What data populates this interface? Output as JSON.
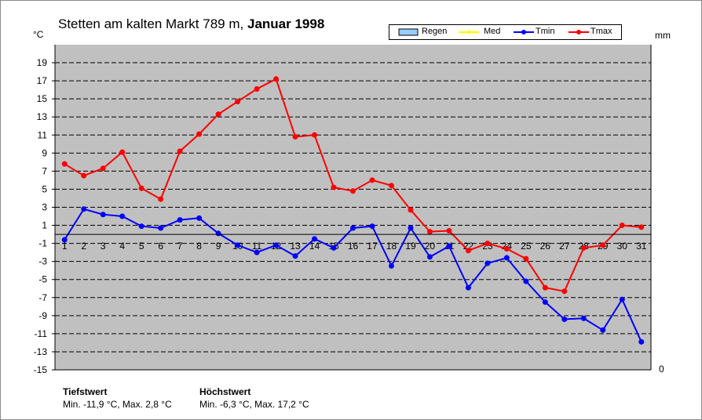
{
  "title": {
    "station": "Stetten am kalten Markt",
    "altitude": "789 m,",
    "period": "Januar 1998"
  },
  "axis": {
    "left_unit": "°C",
    "right_unit": "mm",
    "right_tick": "0"
  },
  "legend": [
    {
      "name": "Regen",
      "color": "#99ccff",
      "kind": "bar"
    },
    {
      "name": "Med",
      "color": "#ffff00",
      "kind": "line"
    },
    {
      "name": "Tmin",
      "color": "#0000ff",
      "kind": "line"
    },
    {
      "name": "Tmax",
      "color": "#ff0000",
      "kind": "line"
    }
  ],
  "stats": {
    "min_label": "Tiefstwert",
    "min_text": "Min. -11,9 °C, Max. 2,8 °C",
    "max_label": "Höchstwert",
    "max_text": "Min. -6,3 °C, Max. 17,2 °C"
  },
  "chart_data": {
    "type": "line",
    "x": [
      1,
      2,
      3,
      4,
      5,
      6,
      7,
      8,
      9,
      10,
      11,
      12,
      13,
      14,
      15,
      16,
      17,
      18,
      19,
      20,
      21,
      22,
      23,
      24,
      25,
      26,
      27,
      28,
      29,
      30,
      31
    ],
    "ylim": [
      -15,
      21
    ],
    "yticks": [
      19,
      17,
      15,
      13,
      11,
      9,
      7,
      5,
      3,
      1,
      -1,
      -3,
      -5,
      -7,
      -9,
      -11,
      -13,
      -15
    ],
    "grid": true,
    "legend_position": "top-right",
    "plot_background": "#c0c0c0",
    "series": [
      {
        "name": "Tmin",
        "color": "#0000ff",
        "values": [
          -0.6,
          2.8,
          2.2,
          2.0,
          0.9,
          0.7,
          1.6,
          1.8,
          0.1,
          -1.2,
          -2.0,
          -1.2,
          -2.4,
          -0.5,
          -1.5,
          0.7,
          0.9,
          -3.5,
          0.7,
          -2.5,
          -1.3,
          -5.9,
          -3.2,
          -2.6,
          -5.2,
          -7.5,
          -9.4,
          -9.3,
          -10.6,
          -7.2,
          -11.9
        ]
      },
      {
        "name": "Tmax",
        "color": "#ff0000",
        "values": [
          7.8,
          6.5,
          7.3,
          9.1,
          5.1,
          3.9,
          9.2,
          11.1,
          13.3,
          14.7,
          16.1,
          17.2,
          10.8,
          11.0,
          5.2,
          4.8,
          6.0,
          5.4,
          2.7,
          0.3,
          0.4,
          -1.8,
          -1.0,
          -1.6,
          -2.7,
          -5.9,
          -6.3,
          -1.5,
          -1.2,
          1.0,
          0.8
        ]
      }
    ]
  }
}
